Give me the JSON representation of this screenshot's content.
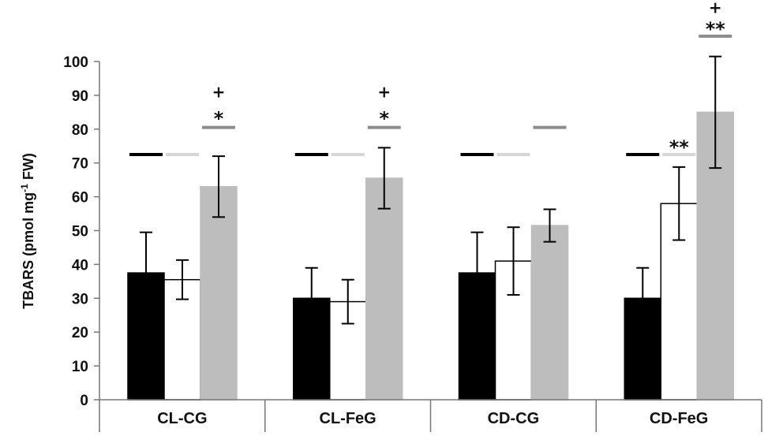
{
  "chart_data": {
    "type": "bar",
    "ylabel_main": "TBARS (pmol mg",
    "ylabel_sup": "-1",
    "ylabel_tail": " FW)",
    "ylim": [
      0,
      100
    ],
    "yticks": [
      "0",
      "10",
      "20",
      "30",
      "40",
      "50",
      "60",
      "70",
      "80",
      "90",
      "100"
    ],
    "grid": false,
    "categories": [
      "CL-CG",
      "CL-FeG",
      "CD-CG",
      "CD-FeG"
    ],
    "series": [
      {
        "color": "#000000",
        "values": [
          37.5,
          30,
          37.5,
          30
        ],
        "errors": [
          12,
          9,
          12,
          9
        ]
      },
      {
        "color": "#ffffff",
        "values": [
          35.5,
          29,
          41,
          58
        ],
        "errors": [
          5.8,
          6.5,
          10,
          10.8
        ]
      },
      {
        "color": "#bdbdbd",
        "values": [
          63,
          65.5,
          51.5,
          85
        ],
        "errors": [
          9,
          9,
          4.8,
          16.5
        ]
      }
    ],
    "comparison_lines": [
      {
        "series": 0,
        "value": 72.5,
        "color": "#000000"
      },
      {
        "series": 1,
        "value": 72.5,
        "color": "#d6d6d6"
      },
      {
        "series": 2,
        "value": [
          80.5,
          80.5,
          80.5,
          107.5
        ],
        "color": "#8c8c8c"
      }
    ],
    "annotations": [
      {
        "category": 0,
        "series": 2,
        "value": 84,
        "text": "*"
      },
      {
        "category": 0,
        "series": 2,
        "value": 91,
        "text": "+"
      },
      {
        "category": 1,
        "series": 2,
        "value": 84,
        "text": "*"
      },
      {
        "category": 1,
        "series": 2,
        "value": 91,
        "text": "+"
      },
      {
        "category": 3,
        "series": 1,
        "value": 75.5,
        "text": "**"
      },
      {
        "category": 3,
        "series": 2,
        "value": 110.5,
        "text": "**"
      },
      {
        "category": 3,
        "series": 2,
        "value": 116,
        "text": "+"
      }
    ]
  }
}
